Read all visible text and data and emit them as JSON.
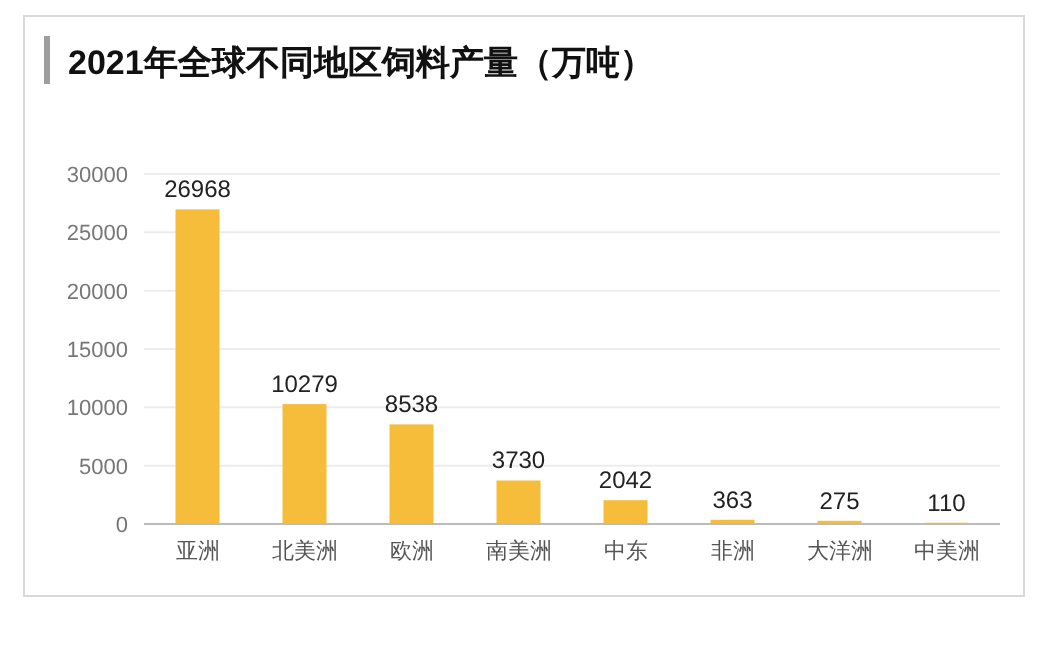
{
  "chart_data": {
    "type": "bar",
    "title": "2021年全球不同地区饲料产量（万吨）",
    "categories": [
      "亚洲",
      "北美洲",
      "欧洲",
      "南美洲",
      "中东",
      "非洲",
      "大洋洲",
      "中美洲"
    ],
    "values": [
      26968,
      10279,
      8538,
      3730,
      2042,
      363,
      275,
      110
    ],
    "color": "#f6bd3a",
    "ylim": [
      0,
      30000
    ],
    "yticks": [
      0,
      5000,
      10000,
      15000,
      20000,
      25000,
      30000
    ],
    "grid": "y",
    "data_labels": true
  }
}
